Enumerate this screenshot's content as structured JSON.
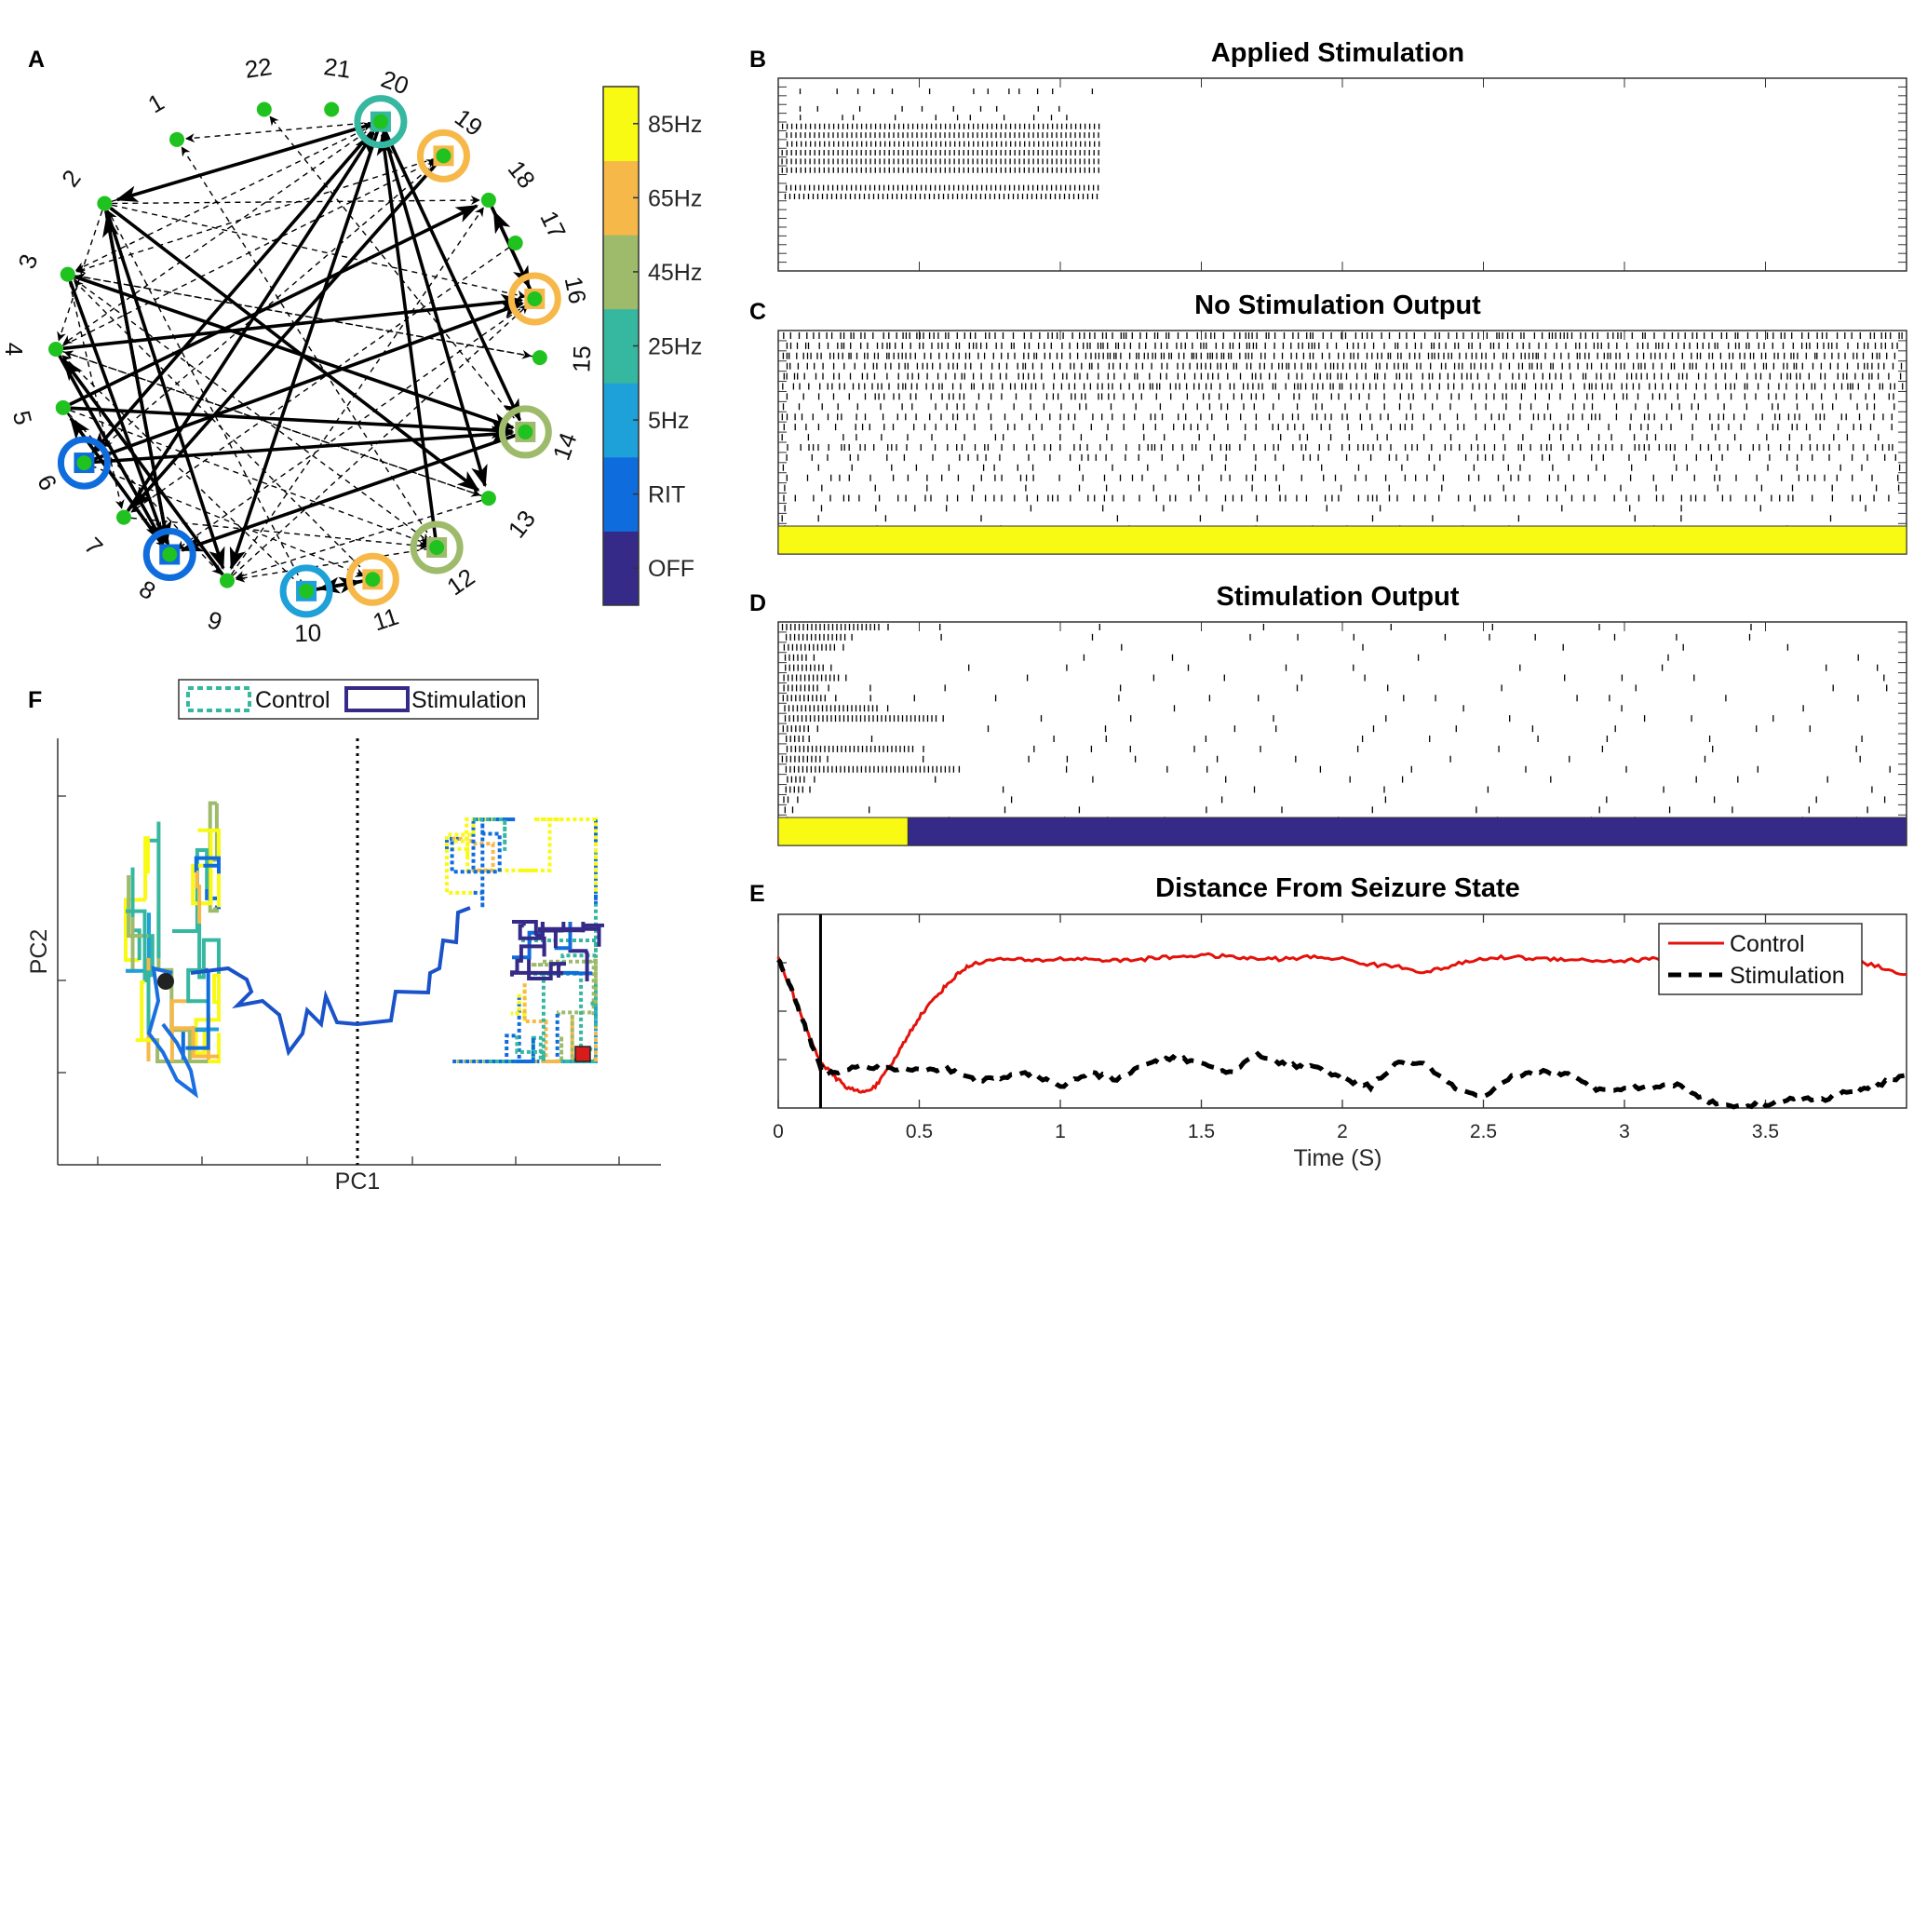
{
  "panels": {
    "a": {
      "label": "A"
    },
    "b": {
      "label": "B",
      "title": "Applied Stimulation"
    },
    "c": {
      "label": "C",
      "title": "No Stimulation Output"
    },
    "d": {
      "label": "D",
      "title": "Stimulation Output"
    },
    "e": {
      "label": "E",
      "title": "Distance From Seizure State"
    },
    "f": {
      "label": "F"
    }
  },
  "colorbar": {
    "levels": [
      "OFF",
      "RIT",
      "5Hz",
      "25Hz",
      "45Hz",
      "65Hz",
      "85Hz"
    ],
    "colors": [
      "#352a87",
      "#0f6cdd",
      "#1ea0d9",
      "#35b7a0",
      "#9dbb6a",
      "#f7b84a",
      "#f9fa14"
    ]
  },
  "network": {
    "node_labels": [
      "1",
      "2",
      "3",
      "4",
      "5",
      "6",
      "7",
      "8",
      "9",
      "10",
      "11",
      "12",
      "13",
      "14",
      "15",
      "16",
      "17",
      "18",
      "19",
      "20",
      "21",
      "22"
    ],
    "node_color": "#1fc21f",
    "stim_rings": [
      {
        "node": "6",
        "level": "RIT"
      },
      {
        "node": "8",
        "level": "RIT"
      },
      {
        "node": "10",
        "level": "5Hz"
      },
      {
        "node": "11",
        "level": "65Hz"
      },
      {
        "node": "12",
        "level": "45Hz"
      },
      {
        "node": "14",
        "level": "45Hz"
      },
      {
        "node": "16",
        "level": "65Hz"
      },
      {
        "node": "19",
        "level": "65Hz"
      },
      {
        "node": "20",
        "level": "25Hz"
      }
    ],
    "strong_edges": [
      [
        "20",
        "2"
      ],
      [
        "20",
        "9"
      ],
      [
        "20",
        "6"
      ],
      [
        "20",
        "13"
      ],
      [
        "20",
        "14"
      ],
      [
        "2",
        "8"
      ],
      [
        "2",
        "13"
      ],
      [
        "2",
        "9"
      ],
      [
        "3",
        "8"
      ],
      [
        "3",
        "14"
      ],
      [
        "4",
        "16"
      ],
      [
        "4",
        "8"
      ],
      [
        "5",
        "18"
      ],
      [
        "5",
        "14"
      ],
      [
        "6",
        "16"
      ],
      [
        "6",
        "14"
      ],
      [
        "7",
        "20"
      ],
      [
        "8",
        "2"
      ],
      [
        "8",
        "5"
      ],
      [
        "9",
        "4"
      ],
      [
        "10",
        "11"
      ],
      [
        "11",
        "10"
      ],
      [
        "12",
        "20"
      ],
      [
        "16",
        "18"
      ],
      [
        "18",
        "16"
      ],
      [
        "19",
        "7"
      ],
      [
        "14",
        "8"
      ]
    ],
    "weak_edges": [
      [
        "20",
        "1"
      ],
      [
        "20",
        "3"
      ],
      [
        "20",
        "4"
      ],
      [
        "2",
        "20"
      ],
      [
        "2",
        "16"
      ],
      [
        "2",
        "18"
      ],
      [
        "3",
        "15"
      ],
      [
        "3",
        "12"
      ],
      [
        "4",
        "13"
      ],
      [
        "4",
        "19"
      ],
      [
        "5",
        "12"
      ],
      [
        "5",
        "9"
      ],
      [
        "6",
        "11"
      ],
      [
        "6",
        "19"
      ],
      [
        "7",
        "12"
      ],
      [
        "9",
        "16"
      ],
      [
        "9",
        "18"
      ],
      [
        "10",
        "4"
      ],
      [
        "10",
        "2"
      ],
      [
        "11",
        "3"
      ],
      [
        "12",
        "1"
      ],
      [
        "13",
        "4"
      ],
      [
        "14",
        "22"
      ],
      [
        "15",
        "3"
      ],
      [
        "16",
        "8"
      ],
      [
        "17",
        "7"
      ],
      [
        "19",
        "3"
      ],
      [
        "12",
        "9"
      ],
      [
        "13",
        "9"
      ],
      [
        "2",
        "4"
      ],
      [
        "3",
        "7"
      ],
      [
        "5",
        "8"
      ]
    ]
  },
  "chart_data": [
    {
      "id": "B",
      "type": "raster",
      "title": "Applied Stimulation",
      "rows": 22,
      "dense_rows": [
        5,
        6,
        7,
        8,
        9,
        10,
        12,
        13
      ],
      "sparse_rows": [
        1,
        3,
        4
      ],
      "stim_end_s": 1.14,
      "xlim": [
        0,
        4
      ]
    },
    {
      "id": "C",
      "type": "raster",
      "title": "No Stimulation Output",
      "rows": 22,
      "xlim": [
        0,
        4
      ],
      "state_bar": [
        {
          "from": 0,
          "to": 4,
          "level": "85Hz"
        }
      ]
    },
    {
      "id": "D",
      "type": "raster",
      "title": "Stimulation Output",
      "rows": 22,
      "xlim": [
        0,
        4
      ],
      "state_bar": [
        {
          "from": 0,
          "to": 0.46,
          "level": "85Hz"
        },
        {
          "from": 0.46,
          "to": 4,
          "level": "OFF"
        }
      ]
    },
    {
      "id": "E",
      "type": "line",
      "title": "Distance From Seizure State",
      "xlabel": "Time (S)",
      "x_ticks": [
        "0",
        "0.5",
        "1",
        "1.5",
        "2",
        "2.5",
        "3",
        "3.5"
      ],
      "xlim": [
        0,
        4
      ],
      "ylim": [
        0,
        1
      ],
      "vline_x": 0.15,
      "legend_position": "top-right",
      "series": [
        {
          "name": "Control",
          "color": "#e3120b",
          "style": "solid",
          "x": [
            0,
            0.05,
            0.1,
            0.15,
            0.2,
            0.25,
            0.3,
            0.35,
            0.4,
            0.45,
            0.5,
            0.55,
            0.6,
            0.65,
            0.7,
            0.8,
            0.9,
            1.0,
            1.1,
            1.2,
            1.3,
            1.4,
            1.5,
            1.6,
            1.7,
            1.8,
            1.9,
            2.0,
            2.1,
            2.2,
            2.3,
            2.4,
            2.5,
            2.6,
            2.7,
            2.8,
            2.9,
            3.0,
            3.1,
            3.2,
            3.3,
            3.4,
            3.5,
            3.6,
            3.7,
            3.8,
            3.9,
            4.0
          ],
          "y": [
            0.77,
            0.6,
            0.4,
            0.24,
            0.16,
            0.1,
            0.08,
            0.12,
            0.22,
            0.35,
            0.47,
            0.56,
            0.64,
            0.71,
            0.75,
            0.77,
            0.76,
            0.77,
            0.77,
            0.76,
            0.77,
            0.78,
            0.79,
            0.78,
            0.77,
            0.77,
            0.78,
            0.77,
            0.74,
            0.73,
            0.7,
            0.74,
            0.77,
            0.78,
            0.77,
            0.77,
            0.76,
            0.76,
            0.77,
            0.75,
            0.73,
            0.74,
            0.78,
            0.79,
            0.78,
            0.77,
            0.73,
            0.69
          ]
        },
        {
          "name": "Stimulation",
          "color": "#000000",
          "style": "dashed",
          "x": [
            0,
            0.05,
            0.1,
            0.15,
            0.2,
            0.3,
            0.4,
            0.5,
            0.6,
            0.7,
            0.8,
            0.9,
            1.0,
            1.1,
            1.2,
            1.3,
            1.4,
            1.5,
            1.6,
            1.7,
            1.8,
            1.9,
            2.0,
            2.1,
            2.2,
            2.3,
            2.4,
            2.5,
            2.6,
            2.7,
            2.8,
            2.9,
            3.0,
            3.1,
            3.2,
            3.3,
            3.4,
            3.5,
            3.6,
            3.7,
            3.8,
            3.9,
            4.0
          ],
          "y": [
            0.77,
            0.6,
            0.4,
            0.21,
            0.18,
            0.22,
            0.2,
            0.2,
            0.2,
            0.14,
            0.16,
            0.18,
            0.11,
            0.18,
            0.15,
            0.22,
            0.26,
            0.23,
            0.18,
            0.28,
            0.22,
            0.21,
            0.15,
            0.11,
            0.24,
            0.22,
            0.1,
            0.05,
            0.16,
            0.19,
            0.17,
            0.1,
            0.1,
            0.11,
            0.12,
            0.03,
            0.01,
            0.02,
            0.05,
            0.04,
            0.09,
            0.12,
            0.17
          ]
        }
      ]
    },
    {
      "id": "F",
      "type": "trajectory",
      "xlabel": "PC1",
      "ylabel": "PC2",
      "legend": [
        "Control",
        "Stimulation"
      ],
      "legend_position": "top",
      "divider": "PC1 midline (dotted)"
    }
  ]
}
